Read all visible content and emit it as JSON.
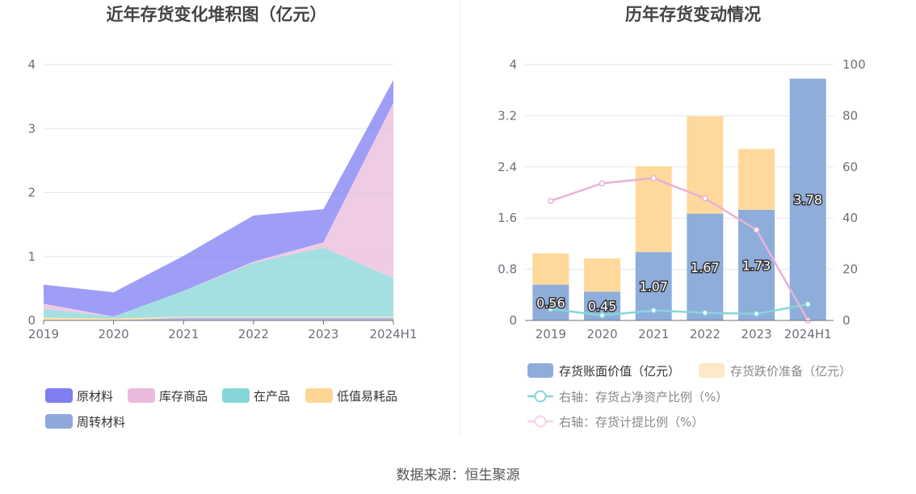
{
  "source": "数据来源：恒生聚源",
  "chart_data": [
    {
      "type": "area",
      "stacked": true,
      "title": "近年存货变化堆积图（亿元）",
      "categories": [
        "2019",
        "2020",
        "2021",
        "2022",
        "2023",
        "2024H1"
      ],
      "ylim": [
        0,
        4
      ],
      "yticks": [
        "0",
        "1",
        "2",
        "3",
        "4"
      ],
      "grid": true,
      "legend_position": "bottom",
      "series": [
        {
          "name": "原材料",
          "color": "#7f7ef3",
          "values": [
            0.3,
            0.38,
            0.55,
            0.72,
            0.52,
            0.36
          ]
        },
        {
          "name": "库存商品",
          "color": "#ebbadb",
          "values": [
            0.08,
            0.0,
            0.0,
            0.02,
            0.08,
            2.74
          ]
        },
        {
          "name": "在产品",
          "color": "#86d6d8",
          "values": [
            0.14,
            0.03,
            0.4,
            0.84,
            1.08,
            0.6
          ]
        },
        {
          "name": "低值易耗品",
          "color": "#fed694",
          "values": [
            0.04,
            0.03,
            0.02,
            0.02,
            0.02,
            0.02
          ]
        },
        {
          "name": "周转材料",
          "color": "#8fa8dc",
          "values": [
            0.0,
            0.0,
            0.04,
            0.04,
            0.04,
            0.04
          ]
        }
      ]
    },
    {
      "type": "bar",
      "stacked": true,
      "title": "历年存货变动情况",
      "categories": [
        "2019",
        "2020",
        "2021",
        "2022",
        "2023",
        "2024H1"
      ],
      "ylim": [
        0,
        4
      ],
      "yticks": [
        "0",
        "0.8",
        "1.6",
        "2.4",
        "3.2",
        "4"
      ],
      "y2lim": [
        0,
        100
      ],
      "y2ticks": [
        "0",
        "20",
        "40",
        "60",
        "80",
        "100"
      ],
      "grid": true,
      "legend_position": "bottom",
      "series": [
        {
          "name": "存货账面价值（亿元）",
          "kind": "bar",
          "color": "#8faddb",
          "values": [
            0.56,
            0.45,
            1.07,
            1.67,
            1.73,
            3.78
          ],
          "labels": [
            "0.56",
            "0.45",
            "1.07",
            "1.67",
            "1.73",
            "3.78"
          ]
        },
        {
          "name": "存货跌价准备（亿元）",
          "kind": "bar",
          "color": "#fed99b",
          "values": [
            0.49,
            0.52,
            1.34,
            1.52,
            0.95,
            0.0
          ]
        },
        {
          "name": "右轴：存货占净资产比例（%）",
          "kind": "line",
          "axis": "right",
          "color": "#86d6d8",
          "values": [
            4.5,
            2.0,
            3.9,
            3.0,
            2.6,
            6.3
          ]
        },
        {
          "name": "右轴：存货计提比例（%）",
          "kind": "line",
          "axis": "right",
          "color": "#e7b3d6",
          "values": [
            46.7,
            53.6,
            55.6,
            47.7,
            35.4,
            0.0
          ]
        }
      ]
    }
  ]
}
